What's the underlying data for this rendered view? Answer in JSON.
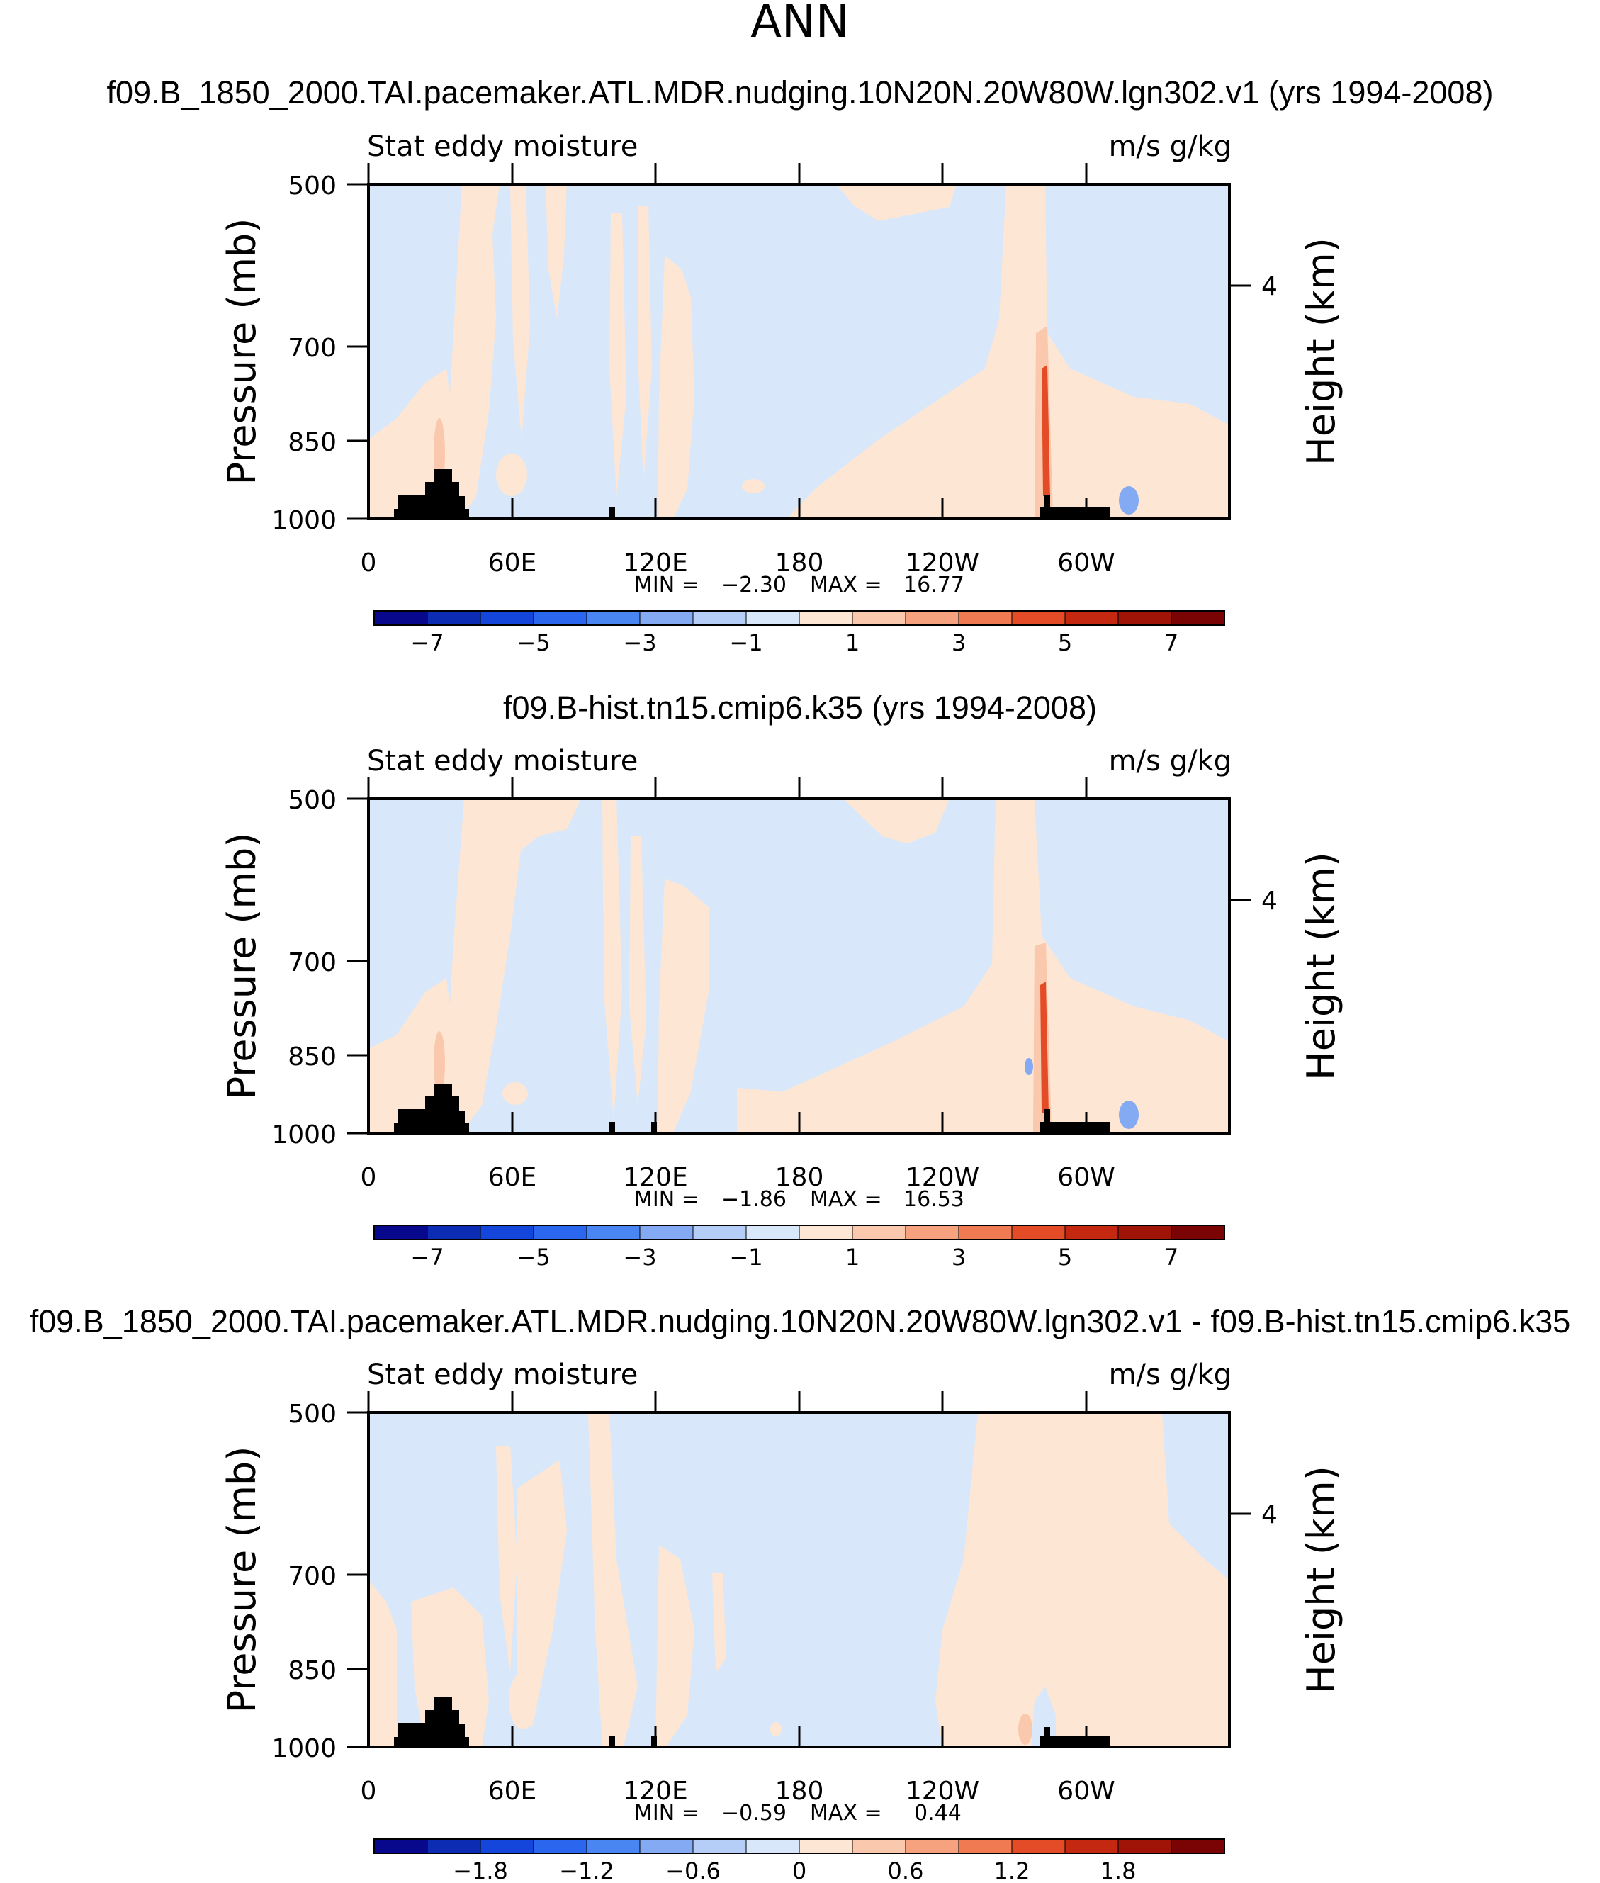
{
  "figure": {
    "title": "ANN"
  },
  "chart_data": [
    {
      "type": "heatmap",
      "title": "f09.B_1850_2000.TAI.pacemaker.ATL.MDR.nudging.10N20N.20W80W.lgn302.v1 (yrs 1994-2008)",
      "left_label": "Stat eddy moisture",
      "right_label": "m/s g/kg",
      "ylabel": "Pressure (mb)",
      "ylabel_right": "Height (km)",
      "y_ticks": [
        "500",
        "700",
        "850",
        "1000"
      ],
      "y_right_ticks": [
        "4"
      ],
      "x_ticks": [
        "0",
        "60E",
        "120E",
        "180",
        "120W",
        "60W"
      ],
      "min_text": "MIN =",
      "min_value": "−2.30",
      "max_text": "MAX =",
      "max_value": "16.77",
      "colorbar_labels": [
        "−7",
        "−5",
        "−3",
        "−1",
        "1",
        "3",
        "5",
        "7"
      ],
      "colorbar_levels": [
        -7,
        -6,
        -5,
        -4,
        -3,
        -2,
        -1,
        0,
        1,
        2,
        3,
        4,
        5,
        6,
        7
      ]
    },
    {
      "type": "heatmap",
      "title": "f09.B-hist.tn15.cmip6.k35 (yrs 1994-2008)",
      "left_label": "Stat eddy moisture",
      "right_label": "m/s g/kg",
      "ylabel": "Pressure (mb)",
      "ylabel_right": "Height (km)",
      "y_ticks": [
        "500",
        "700",
        "850",
        "1000"
      ],
      "y_right_ticks": [
        "4"
      ],
      "x_ticks": [
        "0",
        "60E",
        "120E",
        "180",
        "120W",
        "60W"
      ],
      "min_text": "MIN =",
      "min_value": "−1.86",
      "max_text": "MAX =",
      "max_value": "16.53",
      "colorbar_labels": [
        "−7",
        "−5",
        "−3",
        "−1",
        "1",
        "3",
        "5",
        "7"
      ],
      "colorbar_levels": [
        -7,
        -6,
        -5,
        -4,
        -3,
        -2,
        -1,
        0,
        1,
        2,
        3,
        4,
        5,
        6,
        7
      ]
    },
    {
      "type": "heatmap",
      "title": "f09.B_1850_2000.TAI.pacemaker.ATL.MDR.nudging.10N20N.20W80W.lgn302.v1 - f09.B-hist.tn15.cmip6.k35",
      "left_label": "Stat eddy moisture",
      "right_label": "m/s g/kg",
      "ylabel": "Pressure (mb)",
      "ylabel_right": "Height (km)",
      "y_ticks": [
        "500",
        "700",
        "850",
        "1000"
      ],
      "y_right_ticks": [
        "4"
      ],
      "x_ticks": [
        "0",
        "60E",
        "120E",
        "180",
        "120W",
        "60W"
      ],
      "min_text": "MIN =",
      "min_value": "−0.59",
      "max_text": "MAX =",
      "max_value": "0.44",
      "colorbar_labels": [
        "−1.8",
        "−1.2",
        "−0.6",
        "0",
        "0.6",
        "1.2",
        "1.8"
      ],
      "colorbar_levels": [
        -2.1,
        -1.8,
        -1.5,
        -1.2,
        -0.9,
        -0.6,
        -0.3,
        0,
        0.3,
        0.6,
        0.9,
        1.2,
        1.5,
        1.8,
        2.1
      ]
    }
  ],
  "colors": {
    "colorbar": [
      "#08088c",
      "#0c2cb4",
      "#1446dc",
      "#2a66ee",
      "#4a86f2",
      "#84aaf4",
      "#b4cef8",
      "#d8e8fa",
      "#fde6d4",
      "#fac8ac",
      "#f6a27e",
      "#f07a52",
      "#e44c28",
      "#c42810",
      "#a01408",
      "#7a0404"
    ],
    "neg_fill": "#d8e8fa",
    "pos_fill": "#fde6d4",
    "pos_mid": "#fac8ac",
    "strong": "#e44c28",
    "topo": "#000000"
  }
}
